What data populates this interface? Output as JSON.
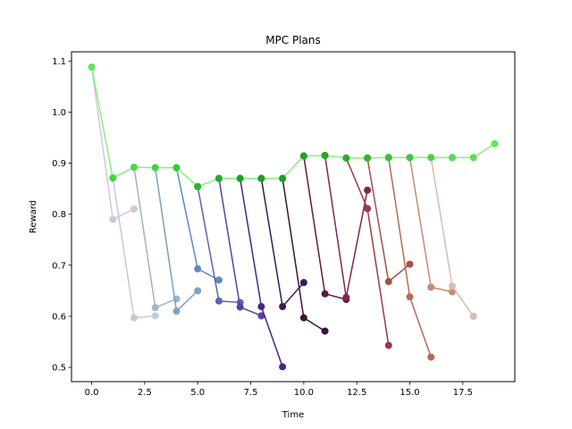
{
  "chart_data": {
    "type": "line",
    "title": "MPC Plans",
    "xlabel": "Time",
    "ylabel": "Reward",
    "xlim": [
      -0.95,
      19.95
    ],
    "ylim": [
      0.472,
      1.118
    ],
    "xticks": [
      0,
      2.5,
      5,
      7.5,
      10,
      12.5,
      15,
      17.5
    ],
    "xtick_labels": [
      "0.0",
      "2.5",
      "5.0",
      "7.5",
      "10.0",
      "12.5",
      "15.0",
      "17.5"
    ],
    "yticks": [
      0.5,
      0.6,
      0.7,
      0.8,
      0.9,
      1.0,
      1.1
    ],
    "ytick_labels": [
      "0.5",
      "0.6",
      "0.7",
      "0.8",
      "0.9",
      "1.0",
      "1.1"
    ],
    "grid": false,
    "legend": "none",
    "plans": [
      {
        "x": [
          0,
          1,
          2
        ],
        "y": [
          1.088,
          0.79,
          0.81
        ],
        "color": "#d4c6d6"
      },
      {
        "x": [
          1,
          2,
          3
        ],
        "y": [
          0.871,
          0.597,
          0.601
        ],
        "color": "#c2cbd3"
      },
      {
        "x": [
          2,
          3,
          4
        ],
        "y": [
          0.892,
          0.617,
          0.634
        ],
        "color": "#9db5c6"
      },
      {
        "x": [
          3,
          4,
          5
        ],
        "y": [
          0.891,
          0.61,
          0.65
        ],
        "color": "#7ca2c0"
      },
      {
        "x": [
          4,
          5,
          6
        ],
        "y": [
          0.891,
          0.693,
          0.671
        ],
        "color": "#6587c0"
      },
      {
        "x": [
          5,
          6,
          7
        ],
        "y": [
          0.854,
          0.63,
          0.627
        ],
        "color": "#5a64b6"
      },
      {
        "x": [
          6,
          7,
          8
        ],
        "y": [
          0.87,
          0.618,
          0.601
        ],
        "color": "#5a40a2"
      },
      {
        "x": [
          7,
          8,
          9
        ],
        "y": [
          0.87,
          0.619,
          0.501
        ],
        "color": "#4d2480"
      },
      {
        "x": [
          8,
          9,
          10
        ],
        "y": [
          0.87,
          0.619,
          0.666
        ],
        "color": "#3a1b55"
      },
      {
        "x": [
          9,
          10,
          11
        ],
        "y": [
          0.87,
          0.597,
          0.571
        ],
        "color": "#3a1438"
      },
      {
        "x": [
          10,
          11,
          12
        ],
        "y": [
          0.914,
          0.644,
          0.633
        ],
        "color": "#5e1c40"
      },
      {
        "x": [
          11,
          12,
          13
        ],
        "y": [
          0.915,
          0.637,
          0.847
        ],
        "color": "#7e2a4c"
      },
      {
        "x": [
          12,
          13,
          14
        ],
        "y": [
          0.91,
          0.811,
          0.543
        ],
        "color": "#983a4b"
      },
      {
        "x": [
          13,
          14,
          15
        ],
        "y": [
          0.91,
          0.668,
          0.702
        ],
        "color": "#a95049"
      },
      {
        "x": [
          14,
          15,
          16
        ],
        "y": [
          0.911,
          0.638,
          0.52
        ],
        "color": "#b86a57"
      },
      {
        "x": [
          15,
          16,
          17
        ],
        "y": [
          0.911,
          0.657,
          0.648
        ],
        "color": "#c48d73"
      },
      {
        "x": [
          16,
          17,
          18
        ],
        "y": [
          0.911,
          0.659,
          0.6
        ],
        "color": "#d7bcb0"
      }
    ],
    "series": [
      {
        "x": [
          0,
          1,
          2,
          3,
          4,
          5,
          6,
          7,
          8,
          9,
          10,
          11,
          12,
          13,
          14,
          15,
          16,
          17,
          18,
          19
        ],
        "values": [
          1.088,
          0.871,
          0.892,
          0.891,
          0.891,
          0.854,
          0.87,
          0.87,
          0.87,
          0.87,
          0.914,
          0.915,
          0.91,
          0.91,
          0.911,
          0.911,
          0.911,
          0.911,
          0.911,
          0.938
        ],
        "color": "#7ef57e",
        "marker_colors": [
          "#5ee85e",
          "#3ed83e",
          "#44dc44",
          "#3fd43f",
          "#36cc36",
          "#2db52d",
          "#27ab27",
          "#22a022",
          "#219b21",
          "#229c22",
          "#22a222",
          "#23a823",
          "#28b028",
          "#2db62d",
          "#37c237",
          "#3fca3f",
          "#48d248",
          "#52da52",
          "#59e059",
          "#5ee75e"
        ]
      }
    ]
  }
}
